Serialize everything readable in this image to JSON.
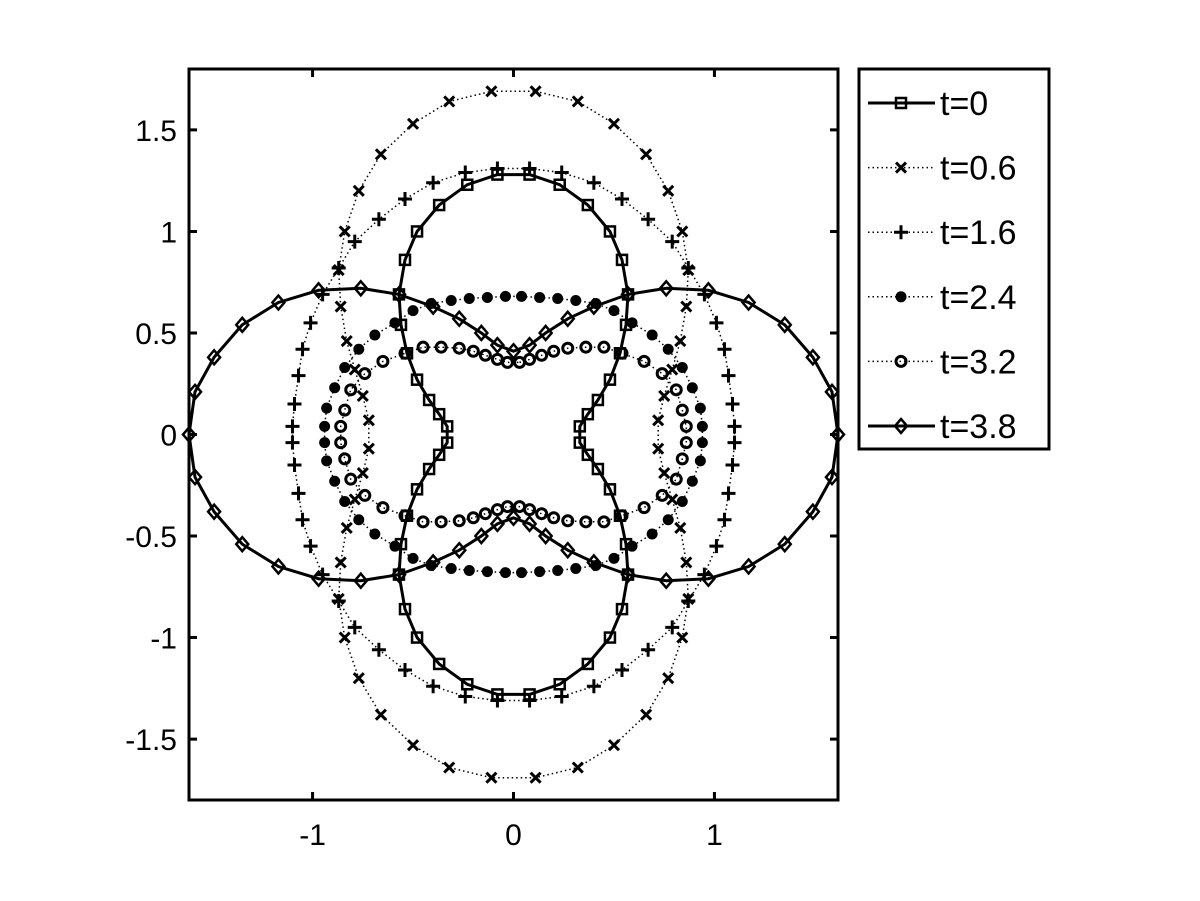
{
  "chart_data": {
    "type": "line",
    "title": "",
    "xlabel": "",
    "ylabel": "",
    "xlim": [
      -1.615,
      1.615
    ],
    "ylim": [
      -1.8,
      1.8
    ],
    "xticks": [
      -1,
      0,
      1
    ],
    "xtick_labels": [
      "-1",
      "0",
      "1"
    ],
    "yticks": [
      -1.5,
      -1,
      -0.5,
      0,
      0.5,
      1,
      1.5
    ],
    "ytick_labels": [
      "-1.5",
      "-1",
      "-0.5",
      "0",
      "0.5",
      "1",
      "1.5"
    ],
    "grid": false,
    "legend_position": "outside-top-right",
    "color": "#000000",
    "series": [
      {
        "name": "t=0",
        "line": "solid",
        "marker": "square",
        "points": [
          [
            0.08,
            1.28
          ],
          [
            0.23,
            1.23
          ],
          [
            0.37,
            1.13
          ],
          [
            0.48,
            1.0
          ],
          [
            0.54,
            0.86
          ],
          [
            0.57,
            0.69
          ],
          [
            0.56,
            0.54
          ],
          [
            0.53,
            0.4
          ],
          [
            0.48,
            0.27
          ],
          [
            0.42,
            0.17
          ],
          [
            0.37,
            0.1
          ],
          [
            0.33,
            0.04
          ],
          [
            0.33,
            -0.04
          ],
          [
            0.37,
            -0.1
          ],
          [
            0.42,
            -0.17
          ],
          [
            0.48,
            -0.27
          ],
          [
            0.53,
            -0.4
          ],
          [
            0.56,
            -0.54
          ],
          [
            0.57,
            -0.69
          ],
          [
            0.54,
            -0.86
          ],
          [
            0.48,
            -1.0
          ],
          [
            0.37,
            -1.13
          ],
          [
            0.23,
            -1.23
          ],
          [
            0.08,
            -1.28
          ],
          [
            -0.08,
            -1.28
          ],
          [
            -0.23,
            -1.23
          ],
          [
            -0.37,
            -1.13
          ],
          [
            -0.48,
            -1.0
          ],
          [
            -0.54,
            -0.86
          ],
          [
            -0.57,
            -0.69
          ],
          [
            -0.56,
            -0.54
          ],
          [
            -0.53,
            -0.4
          ],
          [
            -0.48,
            -0.27
          ],
          [
            -0.42,
            -0.17
          ],
          [
            -0.37,
            -0.1
          ],
          [
            -0.33,
            -0.04
          ],
          [
            -0.33,
            0.04
          ],
          [
            -0.37,
            0.1
          ],
          [
            -0.42,
            0.17
          ],
          [
            -0.48,
            0.27
          ],
          [
            -0.53,
            0.4
          ],
          [
            -0.56,
            0.54
          ],
          [
            -0.57,
            0.69
          ],
          [
            -0.54,
            0.86
          ],
          [
            -0.48,
            1.0
          ],
          [
            -0.37,
            1.13
          ],
          [
            -0.23,
            1.23
          ],
          [
            -0.08,
            1.28
          ]
        ]
      },
      {
        "name": "t=0.6",
        "line": "dotted",
        "marker": "x",
        "points": [
          [
            0.11,
            1.69
          ],
          [
            0.32,
            1.64
          ],
          [
            0.5,
            1.53
          ],
          [
            0.66,
            1.38
          ],
          [
            0.77,
            1.2
          ],
          [
            0.84,
            1.0
          ],
          [
            0.87,
            0.81
          ],
          [
            0.86,
            0.63
          ],
          [
            0.83,
            0.46
          ],
          [
            0.79,
            0.32
          ],
          [
            0.75,
            0.19
          ],
          [
            0.72,
            0.07
          ],
          [
            0.72,
            -0.07
          ],
          [
            0.75,
            -0.19
          ],
          [
            0.79,
            -0.32
          ],
          [
            0.83,
            -0.46
          ],
          [
            0.86,
            -0.63
          ],
          [
            0.87,
            -0.81
          ],
          [
            0.84,
            -1.0
          ],
          [
            0.77,
            -1.2
          ],
          [
            0.66,
            -1.38
          ],
          [
            0.5,
            -1.53
          ],
          [
            0.32,
            -1.64
          ],
          [
            0.11,
            -1.69
          ],
          [
            -0.11,
            -1.69
          ],
          [
            -0.32,
            -1.64
          ],
          [
            -0.5,
            -1.53
          ],
          [
            -0.66,
            -1.38
          ],
          [
            -0.77,
            -1.2
          ],
          [
            -0.84,
            -1.0
          ],
          [
            -0.87,
            -0.81
          ],
          [
            -0.86,
            -0.63
          ],
          [
            -0.83,
            -0.46
          ],
          [
            -0.79,
            -0.32
          ],
          [
            -0.75,
            -0.19
          ],
          [
            -0.72,
            -0.07
          ],
          [
            -0.72,
            0.07
          ],
          [
            -0.75,
            0.19
          ],
          [
            -0.79,
            0.32
          ],
          [
            -0.83,
            0.46
          ],
          [
            -0.86,
            0.63
          ],
          [
            -0.87,
            0.81
          ],
          [
            -0.84,
            1.0
          ],
          [
            -0.77,
            1.2
          ],
          [
            -0.66,
            1.38
          ],
          [
            -0.5,
            1.53
          ],
          [
            -0.32,
            1.64
          ],
          [
            -0.11,
            1.69
          ]
        ]
      },
      {
        "name": "t=1.6",
        "line": "dotted",
        "marker": "plus",
        "points": [
          [
            0.08,
            1.31
          ],
          [
            0.24,
            1.29
          ],
          [
            0.4,
            1.24
          ],
          [
            0.54,
            1.16
          ],
          [
            0.67,
            1.06
          ],
          [
            0.79,
            0.95
          ],
          [
            0.87,
            0.82
          ],
          [
            0.95,
            0.69
          ],
          [
            1.01,
            0.55
          ],
          [
            1.05,
            0.42
          ],
          [
            1.07,
            0.29
          ],
          [
            1.09,
            0.15
          ],
          [
            1.1,
            0.04
          ],
          [
            1.1,
            -0.04
          ],
          [
            1.09,
            -0.15
          ],
          [
            1.07,
            -0.29
          ],
          [
            1.05,
            -0.42
          ],
          [
            1.01,
            -0.55
          ],
          [
            0.95,
            -0.69
          ],
          [
            0.87,
            -0.82
          ],
          [
            0.79,
            -0.95
          ],
          [
            0.67,
            -1.06
          ],
          [
            0.54,
            -1.16
          ],
          [
            0.4,
            -1.24
          ],
          [
            0.24,
            -1.29
          ],
          [
            0.08,
            -1.31
          ],
          [
            -0.08,
            -1.31
          ],
          [
            -0.24,
            -1.29
          ],
          [
            -0.4,
            -1.24
          ],
          [
            -0.54,
            -1.16
          ],
          [
            -0.67,
            -1.06
          ],
          [
            -0.79,
            -0.95
          ],
          [
            -0.87,
            -0.82
          ],
          [
            -0.95,
            -0.69
          ],
          [
            -1.01,
            -0.55
          ],
          [
            -1.05,
            -0.42
          ],
          [
            -1.07,
            -0.29
          ],
          [
            -1.09,
            -0.15
          ],
          [
            -1.1,
            -0.04
          ],
          [
            -1.1,
            0.04
          ],
          [
            -1.09,
            0.15
          ],
          [
            -1.07,
            0.29
          ],
          [
            -1.05,
            0.42
          ],
          [
            -1.01,
            0.55
          ],
          [
            -0.95,
            0.69
          ],
          [
            -0.87,
            0.82
          ],
          [
            -0.79,
            0.95
          ],
          [
            -0.67,
            1.06
          ],
          [
            -0.54,
            1.16
          ],
          [
            -0.4,
            1.24
          ],
          [
            -0.24,
            1.29
          ],
          [
            -0.08,
            1.31
          ]
        ]
      },
      {
        "name": "t=2.4",
        "line": "dotted",
        "marker": "filled-circle",
        "points": [
          [
            0.04,
            0.68
          ],
          [
            0.13,
            0.675
          ],
          [
            0.22,
            0.67
          ],
          [
            0.31,
            0.66
          ],
          [
            0.41,
            0.645
          ],
          [
            0.5,
            0.61
          ],
          [
            0.59,
            0.55
          ],
          [
            0.69,
            0.49
          ],
          [
            0.77,
            0.42
          ],
          [
            0.84,
            0.33
          ],
          [
            0.89,
            0.23
          ],
          [
            0.93,
            0.13
          ],
          [
            0.94,
            0.04
          ],
          [
            0.94,
            -0.04
          ],
          [
            0.93,
            -0.13
          ],
          [
            0.89,
            -0.23
          ],
          [
            0.84,
            -0.33
          ],
          [
            0.77,
            -0.42
          ],
          [
            0.69,
            -0.49
          ],
          [
            0.59,
            -0.55
          ],
          [
            0.5,
            -0.61
          ],
          [
            0.41,
            -0.645
          ],
          [
            0.31,
            -0.66
          ],
          [
            0.22,
            -0.67
          ],
          [
            0.13,
            -0.675
          ],
          [
            0.04,
            -0.68
          ],
          [
            -0.04,
            -0.68
          ],
          [
            -0.13,
            -0.675
          ],
          [
            -0.22,
            -0.67
          ],
          [
            -0.31,
            -0.66
          ],
          [
            -0.41,
            -0.645
          ],
          [
            -0.5,
            -0.61
          ],
          [
            -0.59,
            -0.55
          ],
          [
            -0.69,
            -0.49
          ],
          [
            -0.77,
            -0.42
          ],
          [
            -0.84,
            -0.33
          ],
          [
            -0.89,
            -0.23
          ],
          [
            -0.93,
            -0.13
          ],
          [
            -0.94,
            -0.04
          ],
          [
            -0.94,
            0.04
          ],
          [
            -0.93,
            0.13
          ],
          [
            -0.89,
            0.23
          ],
          [
            -0.84,
            0.33
          ],
          [
            -0.77,
            0.42
          ],
          [
            -0.69,
            0.49
          ],
          [
            -0.59,
            0.55
          ],
          [
            -0.5,
            0.61
          ],
          [
            -0.41,
            0.645
          ],
          [
            -0.31,
            0.66
          ],
          [
            -0.22,
            0.67
          ],
          [
            -0.13,
            0.675
          ],
          [
            -0.04,
            0.68
          ]
        ]
      },
      {
        "name": "t=3.2",
        "line": "dotted",
        "marker": "open-circle",
        "points": [
          [
            0.03,
            0.355
          ],
          [
            0.08,
            0.37
          ],
          [
            0.14,
            0.39
          ],
          [
            0.2,
            0.41
          ],
          [
            0.27,
            0.425
          ],
          [
            0.36,
            0.43
          ],
          [
            0.45,
            0.43
          ],
          [
            0.54,
            0.4
          ],
          [
            0.65,
            0.36
          ],
          [
            0.74,
            0.3
          ],
          [
            0.81,
            0.22
          ],
          [
            0.84,
            0.12
          ],
          [
            0.86,
            0.04
          ],
          [
            0.86,
            -0.04
          ],
          [
            0.84,
            -0.12
          ],
          [
            0.81,
            -0.22
          ],
          [
            0.74,
            -0.3
          ],
          [
            0.65,
            -0.36
          ],
          [
            0.54,
            -0.4
          ],
          [
            0.45,
            -0.43
          ],
          [
            0.36,
            -0.43
          ],
          [
            0.27,
            -0.425
          ],
          [
            0.2,
            -0.41
          ],
          [
            0.14,
            -0.39
          ],
          [
            0.08,
            -0.37
          ],
          [
            0.03,
            -0.355
          ],
          [
            -0.03,
            -0.355
          ],
          [
            -0.08,
            -0.37
          ],
          [
            -0.14,
            -0.39
          ],
          [
            -0.2,
            -0.41
          ],
          [
            -0.27,
            -0.425
          ],
          [
            -0.36,
            -0.43
          ],
          [
            -0.45,
            -0.43
          ],
          [
            -0.54,
            -0.4
          ],
          [
            -0.65,
            -0.36
          ],
          [
            -0.74,
            -0.3
          ],
          [
            -0.81,
            -0.22
          ],
          [
            -0.84,
            -0.12
          ],
          [
            -0.86,
            -0.04
          ],
          [
            -0.86,
            0.04
          ],
          [
            -0.84,
            0.12
          ],
          [
            -0.81,
            0.22
          ],
          [
            -0.74,
            0.3
          ],
          [
            -0.65,
            0.36
          ],
          [
            -0.54,
            0.4
          ],
          [
            -0.45,
            0.43
          ],
          [
            -0.36,
            0.43
          ],
          [
            -0.27,
            0.425
          ],
          [
            -0.2,
            0.41
          ],
          [
            -0.14,
            0.39
          ],
          [
            -0.08,
            0.37
          ],
          [
            -0.03,
            0.355
          ]
        ]
      },
      {
        "name": "t=3.8",
        "line": "solid",
        "marker": "diamond",
        "points": [
          [
            0.0,
            0.41
          ],
          [
            0.08,
            0.44
          ],
          [
            0.16,
            0.5
          ],
          [
            0.27,
            0.57
          ],
          [
            0.4,
            0.63
          ],
          [
            0.57,
            0.69
          ],
          [
            0.76,
            0.72
          ],
          [
            0.97,
            0.71
          ],
          [
            1.17,
            0.65
          ],
          [
            1.35,
            0.54
          ],
          [
            1.49,
            0.38
          ],
          [
            1.585,
            0.21
          ],
          [
            1.615,
            0.0
          ],
          [
            1.585,
            -0.21
          ],
          [
            1.49,
            -0.38
          ],
          [
            1.35,
            -0.54
          ],
          [
            1.17,
            -0.65
          ],
          [
            0.97,
            -0.71
          ],
          [
            0.76,
            -0.72
          ],
          [
            0.57,
            -0.69
          ],
          [
            0.4,
            -0.63
          ],
          [
            0.27,
            -0.57
          ],
          [
            0.16,
            -0.5
          ],
          [
            0.08,
            -0.44
          ],
          [
            0.0,
            -0.41
          ],
          [
            -0.08,
            -0.44
          ],
          [
            -0.16,
            -0.5
          ],
          [
            -0.27,
            -0.57
          ],
          [
            -0.4,
            -0.63
          ],
          [
            -0.57,
            -0.69
          ],
          [
            -0.76,
            -0.72
          ],
          [
            -0.97,
            -0.71
          ],
          [
            -1.17,
            -0.65
          ],
          [
            -1.35,
            -0.54
          ],
          [
            -1.49,
            -0.38
          ],
          [
            -1.585,
            -0.21
          ],
          [
            -1.615,
            0.0
          ],
          [
            -1.585,
            0.21
          ],
          [
            -1.49,
            0.38
          ],
          [
            -1.35,
            0.54
          ],
          [
            -1.17,
            0.65
          ],
          [
            -0.97,
            0.71
          ],
          [
            -0.76,
            0.72
          ],
          [
            -0.57,
            0.69
          ],
          [
            -0.4,
            0.63
          ],
          [
            -0.27,
            0.57
          ],
          [
            -0.16,
            0.5
          ],
          [
            -0.08,
            0.44
          ]
        ]
      }
    ]
  }
}
